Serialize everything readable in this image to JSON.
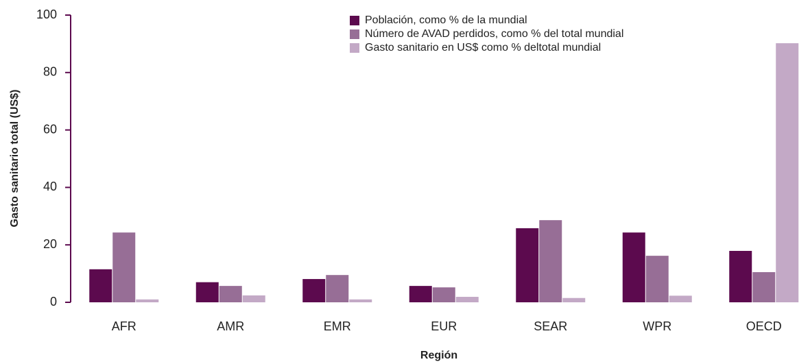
{
  "chart_data": {
    "type": "bar",
    "y_label": "Gasto sanitario total (US$)",
    "x_label": "Región",
    "categories": [
      "AFR",
      "AMR",
      "EMR",
      "EUR",
      "SEAR",
      "WPR",
      "OECD"
    ],
    "series": [
      {
        "name": "Población, como % de la mundial",
        "color": "#5c0a4e",
        "values": [
          11.5,
          7,
          8.1,
          5.7,
          25.8,
          24.3,
          17.9
        ]
      },
      {
        "name": "Número de AVAD perdidos, como % del total mundial",
        "color": "#976e96",
        "values": [
          24.3,
          5.7,
          9.5,
          5.2,
          28.6,
          16.2,
          10.5
        ]
      },
      {
        "name": "Gasto sanitario en US$ como % deltotal mundial",
        "color": "#c3a9c6",
        "values": [
          1,
          2.4,
          1,
          1.9,
          1.5,
          2.3,
          90.2
        ]
      }
    ],
    "ylim": [
      0,
      100
    ],
    "yticks": [
      0,
      20,
      40,
      60,
      80,
      100
    ],
    "legend": "top-right"
  }
}
